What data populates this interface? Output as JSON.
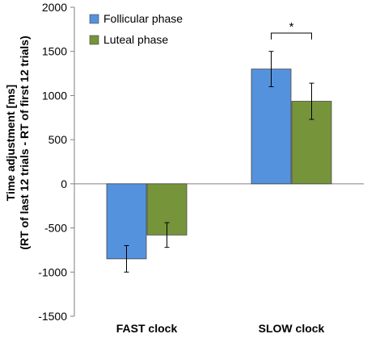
{
  "chart_data": {
    "type": "bar",
    "categories": [
      "FAST clock",
      "SLOW clock"
    ],
    "series": [
      {
        "name": "Follicular phase",
        "color": "#5592DD",
        "values": [
          -850,
          1300
        ],
        "error": [
          150,
          200
        ]
      },
      {
        "name": "Luteal phase",
        "color": "#76953A",
        "values": [
          -580,
          935
        ],
        "error": [
          140,
          205
        ]
      }
    ],
    "ylabel_line1": "Time adjustment [ms]",
    "ylabel_line2": "(RT of last 12 trials - RT of first 12 trials)",
    "ylim": [
      -1500,
      2000
    ],
    "yticks": [
      -1500,
      -1000,
      -500,
      0,
      500,
      1000,
      1500,
      2000
    ],
    "ytick_labels": [
      "-1500",
      "-1000",
      "-500",
      "0",
      "500",
      "1000",
      "1500",
      "2000"
    ],
    "grid": false,
    "legend_position": "top-left",
    "significance": {
      "category": "SLOW clock",
      "label": "*"
    }
  }
}
